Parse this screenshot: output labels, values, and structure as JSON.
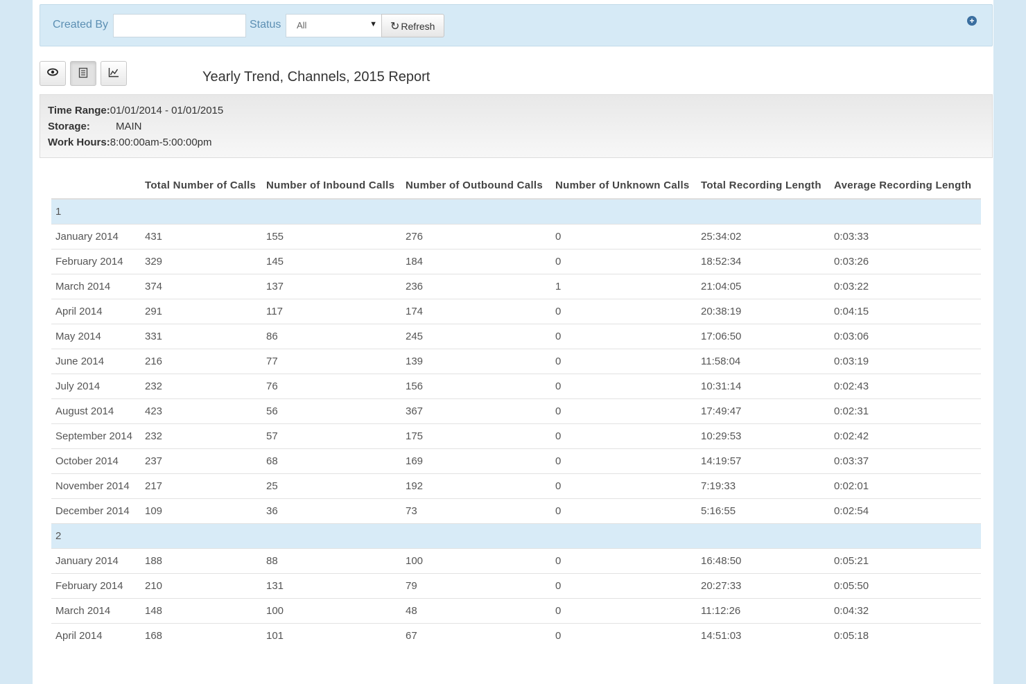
{
  "filters": {
    "created_by_label": "Created By",
    "created_by_value": "",
    "status_label": "Status",
    "status_selected": "All",
    "refresh_label": "Refresh"
  },
  "report": {
    "title": "Yearly Trend, Channels, 2015 Report",
    "time_range_label": "Time Range:",
    "time_range_value": "01/01/2014 - 01/01/2015",
    "storage_label": "Storage:",
    "storage_value": "MAIN",
    "work_hours_label": "Work Hours:",
    "work_hours_value": "8:00:00am-5:00:00pm"
  },
  "table": {
    "headers": [
      "",
      "Total Number of Calls",
      "Number of Inbound Calls",
      "Number of Outbound Calls",
      "Number of Unknown Calls",
      "Total Recording Length",
      "Average Recording Length"
    ],
    "groups": [
      {
        "label": "1",
        "rows": [
          [
            "January 2014",
            "431",
            "155",
            "276",
            "0",
            "25:34:02",
            "0:03:33"
          ],
          [
            "February 2014",
            "329",
            "145",
            "184",
            "0",
            "18:52:34",
            "0:03:26"
          ],
          [
            "March 2014",
            "374",
            "137",
            "236",
            "1",
            "21:04:05",
            "0:03:22"
          ],
          [
            "April 2014",
            "291",
            "117",
            "174",
            "0",
            "20:38:19",
            "0:04:15"
          ],
          [
            "May 2014",
            "331",
            "86",
            "245",
            "0",
            "17:06:50",
            "0:03:06"
          ],
          [
            "June 2014",
            "216",
            "77",
            "139",
            "0",
            "11:58:04",
            "0:03:19"
          ],
          [
            "July 2014",
            "232",
            "76",
            "156",
            "0",
            "10:31:14",
            "0:02:43"
          ],
          [
            "August 2014",
            "423",
            "56",
            "367",
            "0",
            "17:49:47",
            "0:02:31"
          ],
          [
            "September 2014",
            "232",
            "57",
            "175",
            "0",
            "10:29:53",
            "0:02:42"
          ],
          [
            "October 2014",
            "237",
            "68",
            "169",
            "0",
            "14:19:57",
            "0:03:37"
          ],
          [
            "November 2014",
            "217",
            "25",
            "192",
            "0",
            "7:19:33",
            "0:02:01"
          ],
          [
            "December 2014",
            "109",
            "36",
            "73",
            "0",
            "5:16:55",
            "0:02:54"
          ]
        ]
      },
      {
        "label": "2",
        "rows": [
          [
            "January 2014",
            "188",
            "88",
            "100",
            "0",
            "16:48:50",
            "0:05:21"
          ],
          [
            "February 2014",
            "210",
            "131",
            "79",
            "0",
            "20:27:33",
            "0:05:50"
          ],
          [
            "March 2014",
            "148",
            "100",
            "48",
            "0",
            "11:12:26",
            "0:04:32"
          ],
          [
            "April 2014",
            "168",
            "101",
            "67",
            "0",
            "14:51:03",
            "0:05:18"
          ]
        ]
      }
    ]
  }
}
